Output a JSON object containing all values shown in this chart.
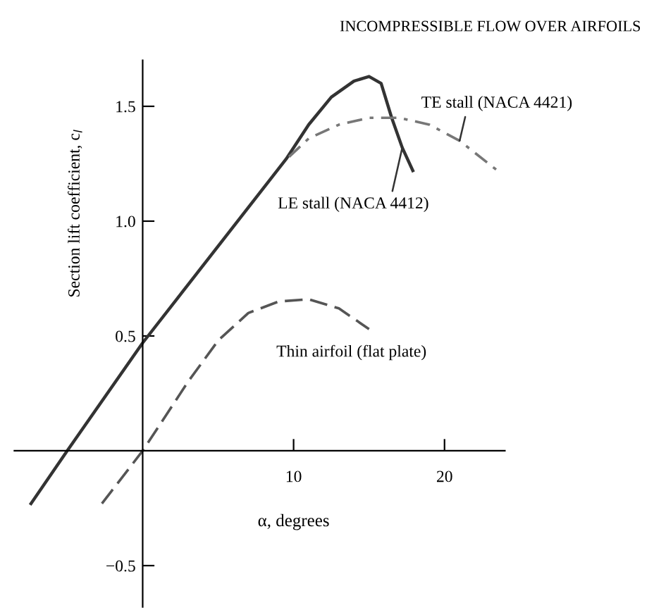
{
  "chart_data": {
    "type": "line",
    "title": "INCOMPRESSIBLE FLOW OVER AIRFOILS",
    "xlabel": "α, degrees",
    "ylabel": "Section lift coefficient, c$_{l}$",
    "xlim": [
      -8.5,
      24
    ],
    "ylim": [
      -0.68,
      1.7
    ],
    "xticks": [
      10,
      20
    ],
    "yticks": [
      {
        "value": -0.5,
        "label": "−0.5"
      },
      {
        "value": 0.5,
        "label": "0.5"
      },
      {
        "value": 1.0,
        "label": "1.0"
      },
      {
        "value": 1.5,
        "label": "1.5"
      }
    ],
    "grid": false,
    "legend": false,
    "marker": "none",
    "series": [
      {
        "name": "LE stall (NACA 4412)",
        "color": "#333333",
        "line_style": "solid",
        "x": [
          -7.4,
          -5,
          0,
          9.5,
          11,
          12.5,
          14,
          15,
          15.8,
          16.5,
          17.2,
          17.9
        ],
        "values": [
          -0.23,
          0,
          0.47,
          1.27,
          1.42,
          1.54,
          1.61,
          1.63,
          1.6,
          1.45,
          1.32,
          1.22
        ]
      },
      {
        "name": "TE stall (NACA 4421)",
        "color": "#777777",
        "line_style": "dashdot",
        "x": [
          9.7,
          11,
          13,
          15,
          17,
          19,
          21,
          23.7
        ],
        "values": [
          1.28,
          1.36,
          1.42,
          1.45,
          1.45,
          1.42,
          1.35,
          1.21
        ]
      },
      {
        "name": "Thin airfoil (flat plate)",
        "color": "#555555",
        "line_style": "dashed",
        "x": [
          -2.7,
          0,
          3,
          5,
          7,
          9,
          11,
          13,
          15
        ],
        "values": [
          -0.23,
          0,
          0.3,
          0.48,
          0.6,
          0.65,
          0.66,
          0.62,
          0.53
        ]
      }
    ]
  }
}
